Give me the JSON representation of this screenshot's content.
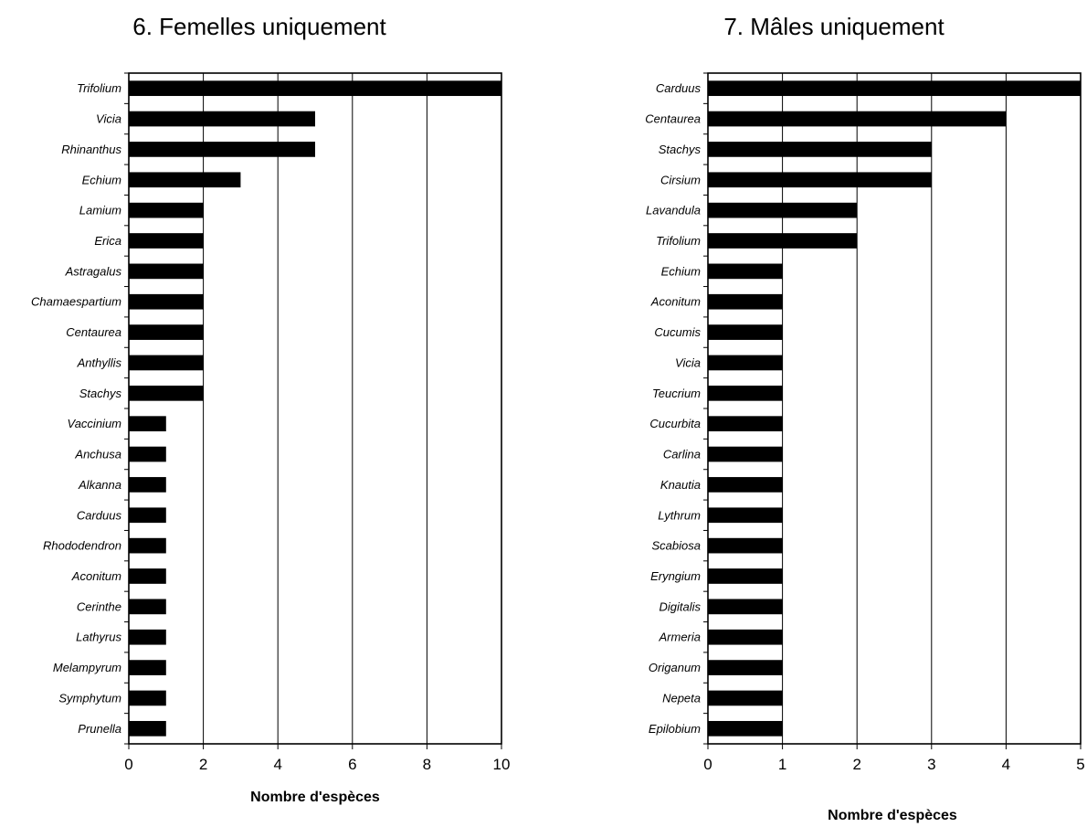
{
  "chart_data": [
    {
      "type": "bar",
      "orientation": "horizontal",
      "title": "6. Femelles uniquement",
      "xlabel": "Nombre d'espèces",
      "ylabel": "",
      "xlim": [
        0,
        10
      ],
      "xticks": [
        "0",
        "2",
        "4",
        "6",
        "8",
        "10"
      ],
      "grid": "vertical",
      "categories": [
        "Trifolium",
        "Vicia",
        "Rhinanthus",
        "Echium",
        "Lamium",
        "Erica",
        "Astragalus",
        "Chamaespartium",
        "Centaurea",
        "Anthyllis",
        "Stachys",
        "Vaccinium",
        "Anchusa",
        "Alkanna",
        "Carduus",
        "Rhododendron",
        "Aconitum",
        "Cerinthe",
        "Lathyrus",
        "Melampyrum",
        "Symphytum",
        "Prunella"
      ],
      "values": [
        10,
        5,
        5,
        3,
        2,
        2,
        2,
        2,
        2,
        2,
        2,
        1,
        1,
        1,
        1,
        1,
        1,
        1,
        1,
        1,
        1,
        1
      ],
      "bar_color": "#000000"
    },
    {
      "type": "bar",
      "orientation": "horizontal",
      "title": "7. Mâles uniquement",
      "xlabel": "Nombre d'espèces",
      "ylabel": "",
      "xlim": [
        0,
        5
      ],
      "xticks": [
        "0",
        "1",
        "2",
        "3",
        "4",
        "5"
      ],
      "grid": "vertical",
      "categories": [
        "Carduus",
        "Centaurea",
        "Stachys",
        "Cirsium",
        "Lavandula",
        "Trifolium",
        "Echium",
        "Aconitum",
        "Cucumis",
        "Vicia",
        "Teucrium",
        "Cucurbita",
        "Carlina",
        "Knautia",
        "Lythrum",
        "Scabiosa",
        "Eryngium",
        "Digitalis",
        "Armeria",
        "Origanum",
        "Nepeta",
        "Epilobium"
      ],
      "values": [
        5,
        4,
        3,
        3,
        2,
        2,
        1,
        1,
        1,
        1,
        1,
        1,
        1,
        1,
        1,
        1,
        1,
        1,
        1,
        1,
        1,
        1
      ],
      "bar_color": "#000000"
    }
  ]
}
